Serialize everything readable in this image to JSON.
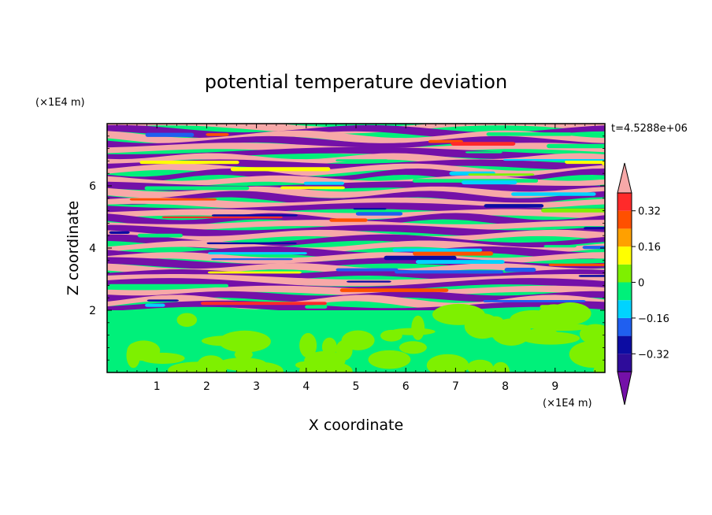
{
  "chart_data": {
    "type": "heatmap",
    "title": "potential temperature deviation",
    "xlabel": "X coordinate",
    "ylabel": "Z coordinate",
    "x_unit": "(×1E4 m)",
    "y_unit": "(×1E4 m)",
    "time_label": "t=4.5288e+06",
    "xlim": [
      0,
      10
    ],
    "ylim": [
      0,
      8
    ],
    "x_ticks": [
      1,
      2,
      3,
      4,
      5,
      6,
      7,
      8,
      9
    ],
    "y_ticks": [
      2,
      4,
      6
    ],
    "colorbar": {
      "min": -0.4,
      "max": 0.4,
      "step": 0.08,
      "tick_values": [
        0.32,
        0.16,
        0,
        -0.16,
        -0.32
      ],
      "tick_labels": [
        "0.32",
        "0.16",
        "0",
        "−0.16",
        "−0.32"
      ],
      "level_colors": [
        "#2e0c9a",
        "#0c0ca2",
        "#1f5ff0",
        "#00d3ff",
        "#00f07a",
        "#7ef000",
        "#ffff00",
        "#ffa000",
        "#ff5000",
        "#ff2a2a"
      ],
      "under_color": "#7410a8",
      "over_color": "#f7a8a8"
    },
    "layers": {
      "lower_z_range": [
        0,
        2
      ],
      "lower_description_colors": [
        "#00f07a",
        "#7ef000"
      ],
      "upper_band_colors": [
        "#f7a8a8",
        "#7410a8"
      ]
    }
  }
}
